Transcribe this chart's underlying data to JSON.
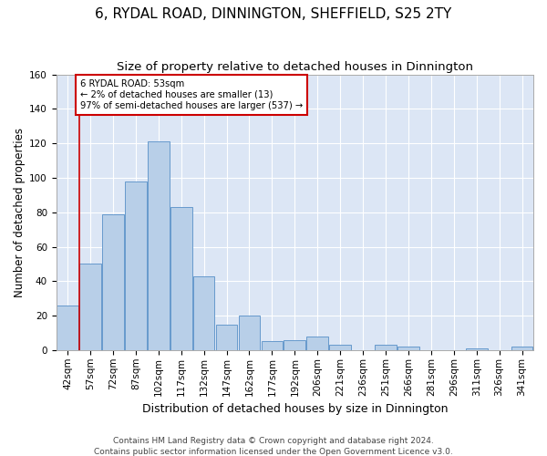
{
  "title": "6, RYDAL ROAD, DINNINGTON, SHEFFIELD, S25 2TY",
  "subtitle": "Size of property relative to detached houses in Dinnington",
  "xlabel": "Distribution of detached houses by size in Dinnington",
  "ylabel": "Number of detached properties",
  "footer_line1": "Contains HM Land Registry data © Crown copyright and database right 2024.",
  "footer_line2": "Contains public sector information licensed under the Open Government Licence v3.0.",
  "categories": [
    "42sqm",
    "57sqm",
    "72sqm",
    "87sqm",
    "102sqm",
    "117sqm",
    "132sqm",
    "147sqm",
    "162sqm",
    "177sqm",
    "192sqm",
    "206sqm",
    "221sqm",
    "236sqm",
    "251sqm",
    "266sqm",
    "281sqm",
    "296sqm",
    "311sqm",
    "326sqm",
    "341sqm"
  ],
  "values": [
    26,
    50,
    79,
    98,
    121,
    83,
    43,
    15,
    20,
    5,
    6,
    8,
    3,
    0,
    3,
    2,
    0,
    0,
    1,
    0,
    2
  ],
  "bar_color": "#b8cfe8",
  "bar_edge_color": "#6699cc",
  "property_line_color": "#cc0000",
  "property_line_x": 0.5,
  "annotation_text": "6 RYDAL ROAD: 53sqm\n← 2% of detached houses are smaller (13)\n97% of semi-detached houses are larger (537) →",
  "annotation_box_color": "#cc0000",
  "ylim": [
    0,
    160
  ],
  "yticks": [
    0,
    20,
    40,
    60,
    80,
    100,
    120,
    140,
    160
  ],
  "background_color": "#dce6f5",
  "grid_color": "#ffffff",
  "fig_background": "#ffffff",
  "title_fontsize": 11,
  "subtitle_fontsize": 9.5,
  "xlabel_fontsize": 9,
  "ylabel_fontsize": 8.5,
  "tick_fontsize": 7.5,
  "footer_fontsize": 6.5
}
